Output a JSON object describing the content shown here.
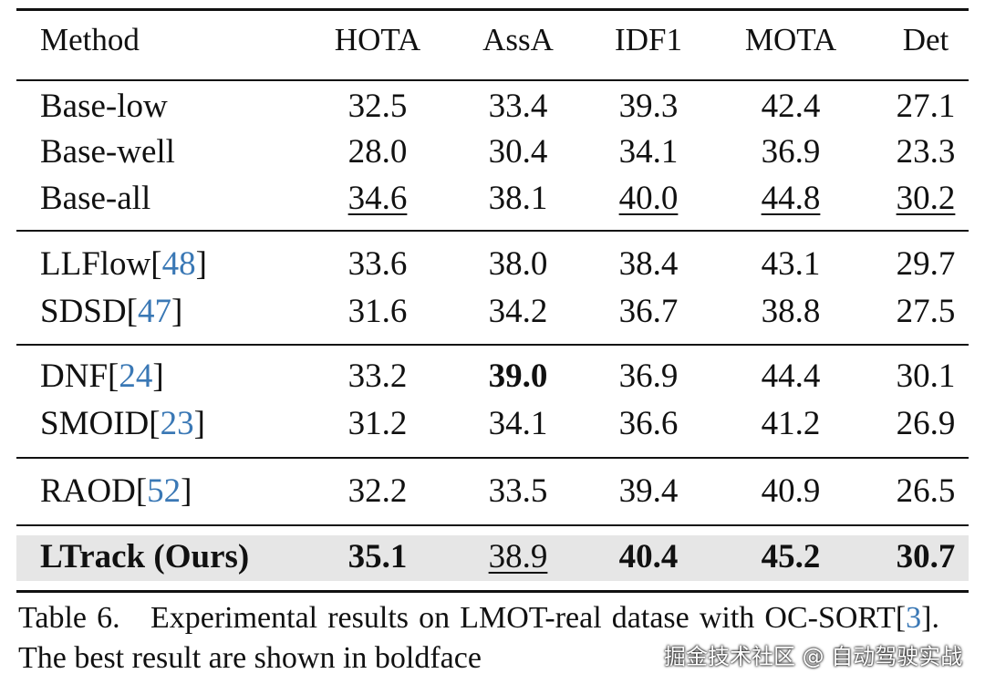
{
  "table": {
    "columns": [
      "Method",
      "HOTA",
      "AssA",
      "IDF1",
      "MOTA",
      "Det"
    ],
    "groups": [
      [
        {
          "method": "Base-low",
          "cells": [
            "32.5",
            "33.4",
            "39.3",
            "42.4",
            "27.1"
          ]
        },
        {
          "method": "Base-well",
          "cells": [
            "28.0",
            "30.4",
            "34.1",
            "36.9",
            "23.3"
          ]
        },
        {
          "method": "Base-all",
          "cells": [
            "34.6",
            "38.1",
            "40.0",
            "44.8",
            "30.2"
          ],
          "underline": [
            0,
            2,
            3,
            4
          ]
        }
      ],
      [
        {
          "method": "LLFlow",
          "cite": [
            "[",
            "48",
            "]"
          ],
          "cells": [
            "33.6",
            "38.0",
            "38.4",
            "43.1",
            "29.7"
          ]
        },
        {
          "method": "SDSD",
          "cite": [
            "[",
            "47",
            "]"
          ],
          "cells": [
            "31.6",
            "34.2",
            "36.7",
            "38.8",
            "27.5"
          ]
        }
      ],
      [
        {
          "method": "DNF",
          "cite": [
            "[",
            "24",
            "]"
          ],
          "cells": [
            "33.2",
            "39.0",
            "36.9",
            "44.4",
            "30.1"
          ],
          "bold": [
            1
          ]
        },
        {
          "method": "SMOID",
          "cite": [
            "[",
            "23",
            "]"
          ],
          "cells": [
            "31.2",
            "34.1",
            "36.6",
            "41.2",
            "26.9"
          ]
        }
      ],
      [
        {
          "method": "RAOD",
          "cite": [
            "[",
            "52",
            "]"
          ],
          "cells": [
            "32.2",
            "33.5",
            "39.4",
            "40.9",
            "26.5"
          ]
        }
      ],
      [
        {
          "method": "LTrack (Ours)",
          "cells": [
            "35.1",
            "38.9",
            "40.4",
            "45.2",
            "30.7"
          ],
          "bold": [
            0,
            2,
            3,
            4
          ],
          "underline": [
            1
          ],
          "bold_method": true,
          "highlight": true
        }
      ]
    ]
  },
  "caption": {
    "label": "Table 6.",
    "text": "Experimental results on LMOT-real datase with OC-SORT",
    "cite": [
      "[",
      "3",
      "]"
    ],
    "rest": ". The best result are shown in boldface"
  },
  "watermark": "掘金技术社区 @ 自动驾驶实战"
}
